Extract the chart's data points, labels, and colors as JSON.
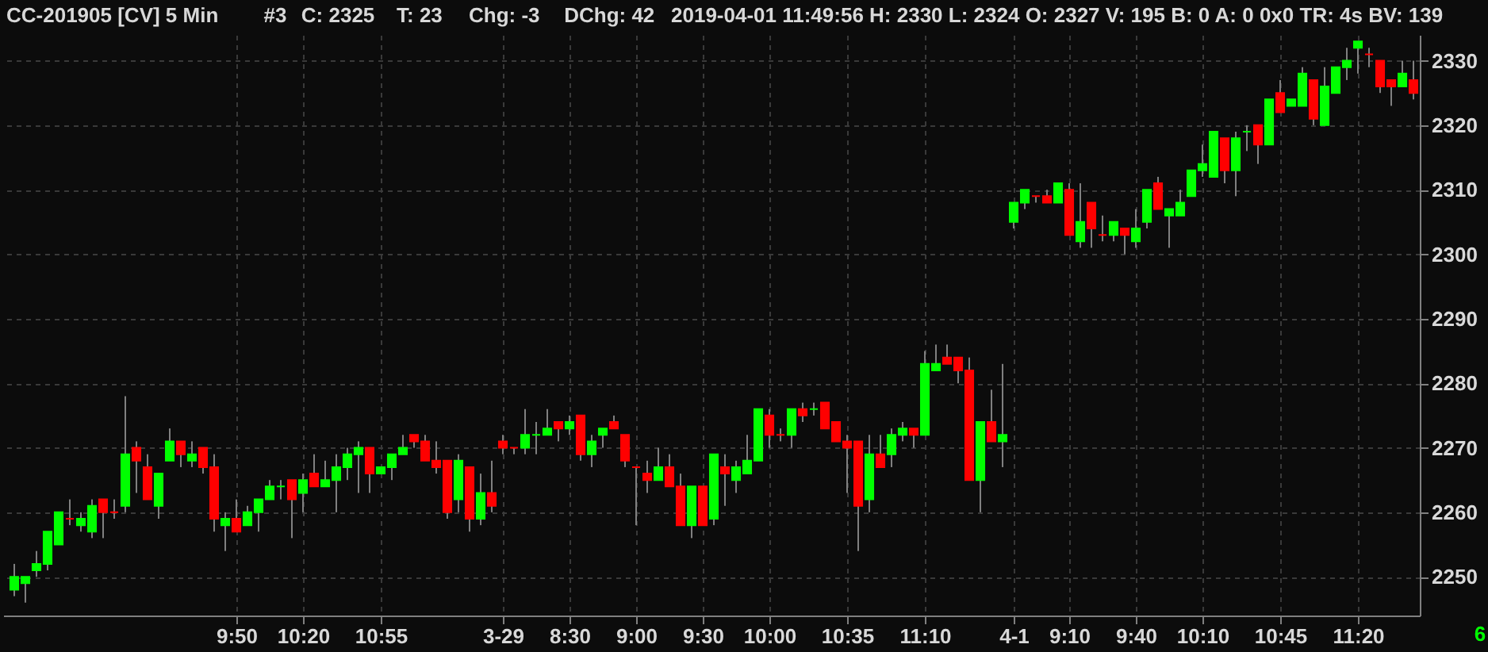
{
  "chart_data": {
    "type": "candlestick",
    "title": "CC-201905 [CV]  5 Min",
    "annotations": [
      "#3",
      "C: 2325",
      "T: 23",
      "Chg: -3",
      "DChg: 42",
      "2019-04-01 11:49:56 H: 2330 L: 2324 O: 2327 V: 195 B: 0 A: 0 0x0 TR: 4s BV: 139",
      "6"
    ],
    "categories": [
      null,
      null,
      null,
      null,
      null,
      null,
      null,
      null,
      null,
      null,
      null,
      null,
      null,
      null,
      null,
      null,
      null,
      null,
      null,
      null,
      "9:50",
      null,
      null,
      null,
      null,
      null,
      "10:20",
      null,
      null,
      null,
      null,
      null,
      null,
      "10:55",
      null,
      null,
      null,
      null,
      null,
      null,
      null,
      null,
      null,
      null,
      "3-29",
      null,
      null,
      null,
      null,
      null,
      "8:30",
      null,
      null,
      null,
      null,
      null,
      "9:00",
      null,
      null,
      null,
      null,
      null,
      "9:30",
      null,
      null,
      null,
      null,
      null,
      "10:00",
      null,
      null,
      null,
      null,
      null,
      null,
      "10:35",
      null,
      null,
      null,
      null,
      null,
      null,
      "11:10",
      null,
      null,
      null,
      null,
      null,
      null,
      null,
      "4-1",
      null,
      null,
      null,
      null,
      "9:10",
      null,
      null,
      null,
      null,
      null,
      "9:40",
      null,
      null,
      null,
      null,
      null,
      "10:10",
      null,
      null,
      null,
      null,
      null,
      null,
      "10:45",
      null,
      null,
      null,
      null,
      null,
      null,
      "11:20",
      null,
      null,
      null,
      null,
      null
    ],
    "ohlc": [
      [
        2248,
        2252,
        2247,
        2250
      ],
      [
        2249,
        2250,
        2246,
        2250
      ],
      [
        2251,
        2254,
        2250,
        2252
      ],
      [
        2252,
        2257,
        2251,
        2257
      ],
      [
        2255,
        2260,
        2255,
        2260
      ],
      [
        2259,
        2262,
        2258,
        2259
      ],
      [
        2258,
        2260,
        2257,
        2259
      ],
      [
        2257,
        2262,
        2256,
        2261
      ],
      [
        2262,
        2262,
        2256,
        2260
      ],
      [
        2260,
        2262,
        2259,
        2260
      ],
      [
        2261,
        2278,
        2260,
        2269
      ],
      [
        2270,
        2271,
        2263,
        2268
      ],
      [
        2267,
        2269,
        2262,
        2262
      ],
      [
        2261,
        2266,
        2259,
        2266
      ],
      [
        2268,
        2273,
        2268,
        2271
      ],
      [
        2271,
        2271,
        2267,
        2269
      ],
      [
        2268,
        2271,
        2267,
        2269
      ],
      [
        2270,
        2270,
        2266,
        2267
      ],
      [
        2267,
        2269,
        2257,
        2259
      ],
      [
        2258,
        2260,
        2254,
        2259
      ],
      [
        2259,
        2262,
        2257,
        2257
      ],
      [
        2258,
        2261,
        2258,
        2260
      ],
      [
        2260,
        2262,
        2257,
        2262
      ],
      [
        2262,
        2265,
        2262,
        2264
      ],
      [
        2264,
        2265,
        2262,
        2264
      ],
      [
        2265,
        2265,
        2256,
        2262
      ],
      [
        2263,
        2266,
        2260,
        2265
      ],
      [
        2266,
        2269,
        2264,
        2264
      ],
      [
        2264,
        2268,
        2264,
        2265
      ],
      [
        2265,
        2269,
        2260,
        2267
      ],
      [
        2267,
        2270,
        2265,
        2269
      ],
      [
        2269,
        2271,
        2263,
        2270
      ],
      [
        2270,
        2270,
        2263,
        2266
      ],
      [
        2266,
        2267,
        2266,
        2267
      ],
      [
        2267,
        2269,
        2265,
        2269
      ],
      [
        2269,
        2272,
        2269,
        2270
      ],
      [
        2272,
        2272,
        2270,
        2271
      ],
      [
        2271,
        2272,
        2268,
        2268
      ],
      [
        2268,
        2271,
        2266,
        2267
      ],
      [
        2268,
        2268,
        2259,
        2260
      ],
      [
        2262,
        2269,
        2260,
        2268
      ],
      [
        2267,
        2267,
        2257,
        2259
      ],
      [
        2259,
        2266,
        2258,
        2263
      ],
      [
        2263,
        2268,
        2260,
        2261
      ],
      [
        2271,
        2272,
        2269,
        2270
      ],
      [
        2270,
        2270,
        2269,
        2270
      ],
      [
        2270,
        2276,
        2269,
        2272
      ],
      [
        2272,
        2274,
        2269,
        2272
      ],
      [
        2272,
        2276,
        2272,
        2273
      ],
      [
        2274,
        2274,
        2271,
        2273
      ],
      [
        2273,
        2275,
        2272,
        2274
      ],
      [
        2275,
        2275,
        2268,
        2269
      ],
      [
        2269,
        2272,
        2267,
        2271
      ],
      [
        2272,
        2273,
        2270,
        2273
      ],
      [
        2274,
        2275,
        2273,
        2273
      ],
      [
        2272,
        2272,
        2267,
        2268
      ],
      [
        2267,
        2267,
        2258,
        2267
      ],
      [
        2266,
        2268,
        2263,
        2265
      ],
      [
        2265,
        2270,
        2265,
        2267
      ],
      [
        2267,
        2269,
        2264,
        2264
      ],
      [
        2264,
        2266,
        2258,
        2258
      ],
      [
        2258,
        2264,
        2256,
        2264
      ],
      [
        2264,
        2264,
        2258,
        2258
      ],
      [
        2259,
        2269,
        2258,
        2269
      ],
      [
        2267,
        2269,
        2261,
        2266
      ],
      [
        2265,
        2268,
        2263,
        2267
      ],
      [
        2266,
        2272,
        2266,
        2268
      ],
      [
        2268,
        2276,
        2268,
        2276
      ],
      [
        2275,
        2276,
        2270,
        2272
      ],
      [
        2272,
        2273,
        2271,
        2272
      ],
      [
        2272,
        2276,
        2270,
        2276
      ],
      [
        2276,
        2277,
        2274,
        2275
      ],
      [
        2276,
        2277,
        2275,
        2276
      ],
      [
        2277,
        2277,
        2273,
        2273
      ],
      [
        2274,
        2274,
        2271,
        2271
      ],
      [
        2271,
        2272,
        2263,
        2270
      ],
      [
        2271,
        2271,
        2254,
        2261
      ],
      [
        2262,
        2272,
        2260,
        2269
      ],
      [
        2269,
        2272,
        2267,
        2267
      ],
      [
        2269,
        2273,
        2267,
        2272
      ],
      [
        2272,
        2274,
        2271,
        2273
      ],
      [
        2273,
        2273,
        2270,
        2272
      ],
      [
        2272,
        2285,
        2272,
        2283
      ],
      [
        2282,
        2286,
        2282,
        2283
      ],
      [
        2284,
        2286,
        2283,
        2283
      ],
      [
        2284,
        2284,
        2280,
        2282
      ],
      [
        2282,
        2284,
        2265,
        2265
      ],
      [
        2265,
        2274,
        2260,
        2274
      ],
      [
        2274,
        2279,
        2271,
        2271
      ],
      [
        2271,
        2283,
        2267,
        2272
      ],
      [
        2305,
        2308,
        2304,
        2308
      ],
      [
        2308,
        2310,
        2307,
        2310
      ],
      [
        2309,
        2309,
        2308,
        2309
      ],
      [
        2309,
        2310,
        2308,
        2308
      ],
      [
        2308,
        2311,
        2308,
        2311
      ],
      [
        2310,
        2311,
        2303,
        2303
      ],
      [
        2302,
        2311,
        2301,
        2305
      ],
      [
        2308,
        2308,
        2301,
        2304
      ],
      [
        2303,
        2306,
        2302,
        2303
      ],
      [
        2303,
        2305,
        2302,
        2305
      ],
      [
        2304,
        2304,
        2300,
        2303
      ],
      [
        2302,
        2307,
        2301,
        2304
      ],
      [
        2305,
        2310,
        2304,
        2310
      ],
      [
        2311,
        2312,
        2307,
        2307
      ],
      [
        2306,
        2307,
        2301,
        2307
      ],
      [
        2306,
        2310,
        2306,
        2308
      ],
      [
        2309,
        2313,
        2309,
        2313
      ],
      [
        2313,
        2317,
        2312,
        2314
      ],
      [
        2312,
        2319,
        2312,
        2319
      ],
      [
        2318,
        2318,
        2311,
        2313
      ],
      [
        2313,
        2319,
        2309,
        2318
      ],
      [
        2319,
        2320,
        2316,
        2319
      ],
      [
        2320,
        2320,
        2314,
        2317
      ],
      [
        2317,
        2324,
        2317,
        2324
      ],
      [
        2325,
        2327,
        2322,
        2322
      ],
      [
        2323,
        2324,
        2323,
        2324
      ],
      [
        2323,
        2329,
        2323,
        2328
      ],
      [
        2327,
        2327,
        2320,
        2321
      ],
      [
        2320,
        2329,
        2320,
        2326
      ],
      [
        2325,
        2329,
        2325,
        2329
      ],
      [
        2329,
        2332,
        2327,
        2330
      ],
      [
        2332,
        2333,
        2328,
        2333
      ],
      [
        2331,
        2332,
        2329,
        2331
      ],
      [
        2330,
        2330,
        2325,
        2326
      ],
      [
        2327,
        2327,
        2323,
        2326
      ],
      [
        2326,
        2330,
        2326,
        2328
      ],
      [
        2327,
        2330,
        2324,
        2325
      ]
    ],
    "colors": [
      "#00ff00",
      "#00ff00",
      "#00ff00",
      "#00ff00",
      "#00ff00",
      "#ff0000",
      "#00ff00",
      "#00ff00",
      "#ff0000",
      "#ff0000",
      "#00ff00",
      "#ff0000",
      "#ff0000",
      "#00ff00",
      "#00ff00",
      "#ff0000",
      "#00ff00",
      "#ff0000",
      "#ff0000",
      "#00ff00",
      "#ff0000",
      "#00ff00",
      "#00ff00",
      "#00ff00",
      "#00ff00",
      "#ff0000",
      "#00ff00",
      "#ff0000",
      "#00ff00",
      "#00ff00",
      "#00ff00",
      "#00ff00",
      "#ff0000",
      "#00ff00",
      "#00ff00",
      "#00ff00",
      "#ff0000",
      "#ff0000",
      "#ff0000",
      "#ff0000",
      "#00ff00",
      "#ff0000",
      "#00ff00",
      "#ff0000",
      "#ff0000",
      "#ff0000",
      "#00ff00",
      "#00ff00",
      "#00ff00",
      "#ff0000",
      "#00ff00",
      "#ff0000",
      "#00ff00",
      "#00ff00",
      "#ff0000",
      "#ff0000",
      "#ff0000",
      "#ff0000",
      "#00ff00",
      "#ff0000",
      "#ff0000",
      "#00ff00",
      "#ff0000",
      "#00ff00",
      "#ff0000",
      "#00ff00",
      "#00ff00",
      "#00ff00",
      "#ff0000",
      "#ff0000",
      "#00ff00",
      "#ff0000",
      "#00ff00",
      "#ff0000",
      "#ff0000",
      "#ff0000",
      "#ff0000",
      "#00ff00",
      "#ff0000",
      "#00ff00",
      "#00ff00",
      "#ff0000",
      "#00ff00",
      "#00ff00",
      "#ff0000",
      "#ff0000",
      "#ff0000",
      "#00ff00",
      "#ff0000",
      "#00ff00",
      "#00ff00",
      "#00ff00",
      "#ff0000",
      "#ff0000",
      "#00ff00",
      "#ff0000",
      "#00ff00",
      "#ff0000",
      "#ff0000",
      "#00ff00",
      "#ff0000",
      "#00ff00",
      "#00ff00",
      "#ff0000",
      "#00ff00",
      "#00ff00",
      "#00ff00",
      "#00ff00",
      "#00ff00",
      "#ff0000",
      "#00ff00",
      "#00ff00",
      "#ff0000",
      "#00ff00",
      "#ff0000",
      "#00ff00",
      "#00ff00",
      "#ff0000",
      "#00ff00",
      "#00ff00",
      "#00ff00",
      "#00ff00",
      "#ff0000",
      "#ff0000",
      "#ff0000",
      "#00ff00",
      "#ff0000"
    ],
    "ylim": [
      2244,
      2334
    ],
    "yticks": [
      2250,
      2260,
      2270,
      2280,
      2290,
      2300,
      2310,
      2320,
      2330
    ],
    "grid": true
  }
}
